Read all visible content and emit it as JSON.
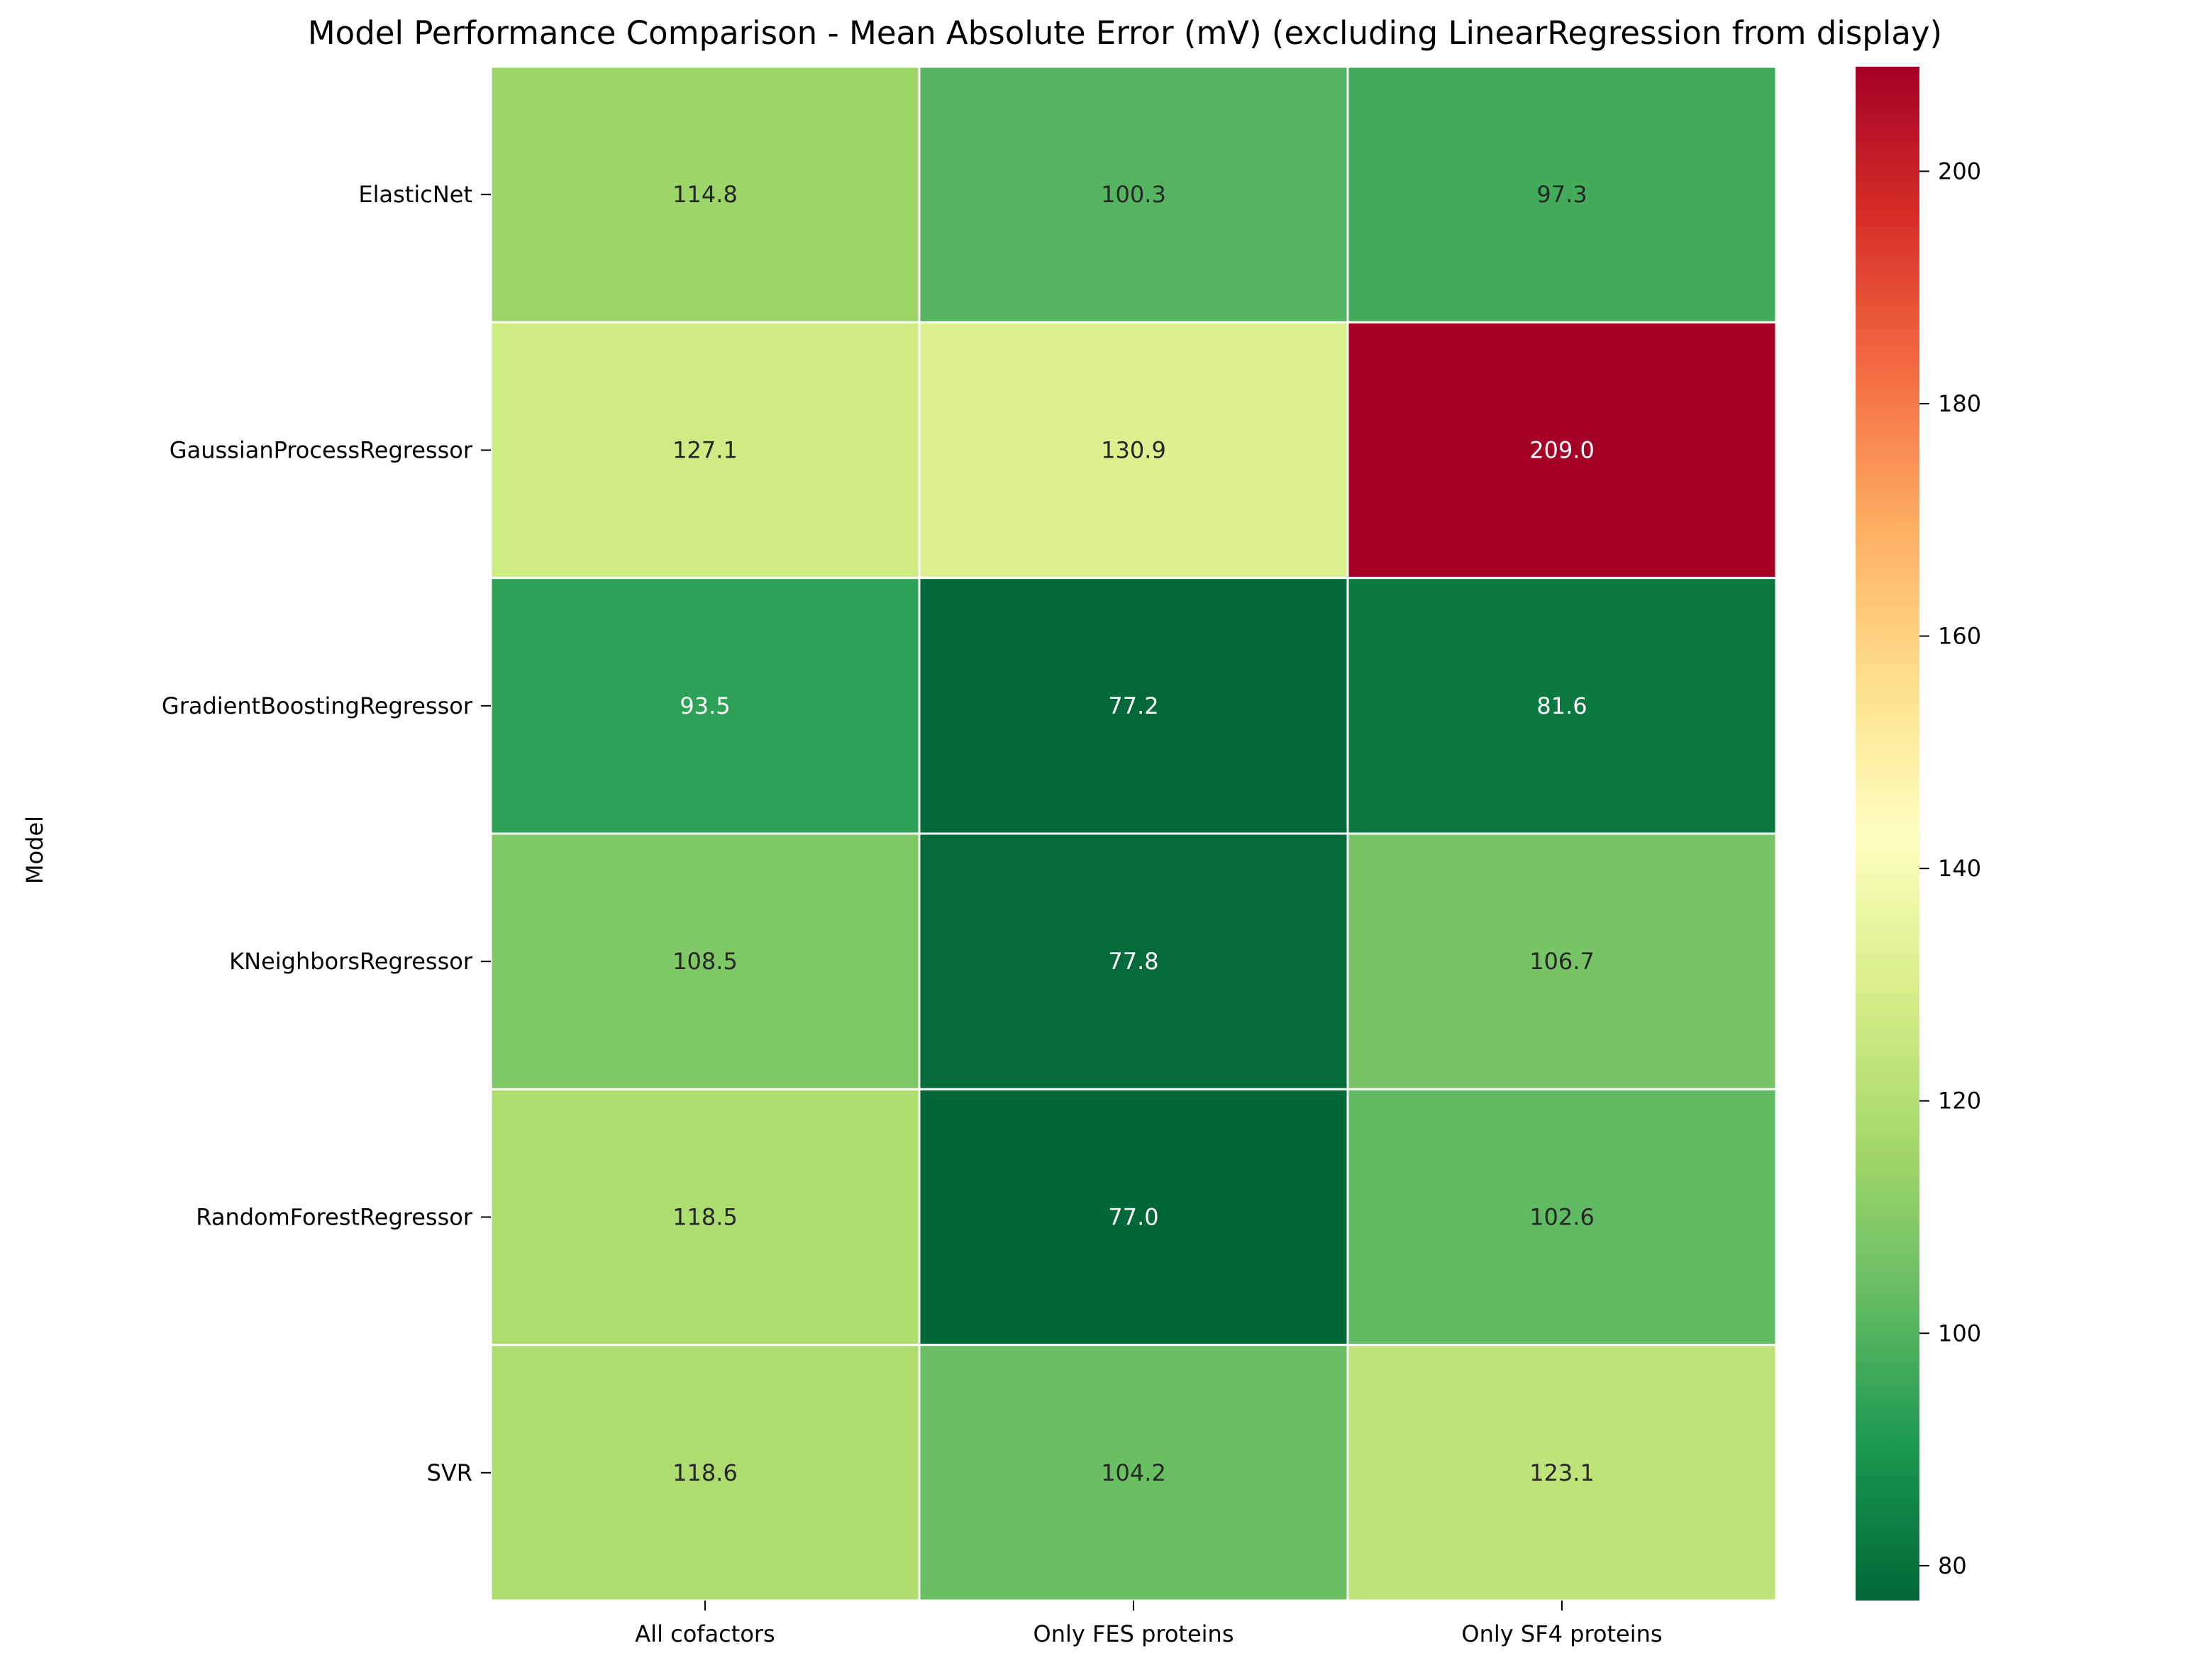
{
  "chart_data": {
    "type": "heatmap",
    "title": "Model Performance Comparison - Mean Absolute Error (mV) (excluding LinearRegression from display)",
    "ylabel": "Model",
    "xlabel": "",
    "columns": [
      "All cofactors",
      "Only FES proteins",
      "Only SF4 proteins"
    ],
    "rows": [
      "ElasticNet",
      "GaussianProcessRegressor",
      "GradientBoostingRegressor",
      "KNeighborsRegressor",
      "RandomForestRegressor",
      "SVR"
    ],
    "values": [
      [
        114.8,
        100.3,
        97.3
      ],
      [
        127.1,
        130.9,
        209.0
      ],
      [
        93.5,
        77.2,
        81.6
      ],
      [
        108.5,
        77.8,
        106.7
      ],
      [
        118.5,
        77.0,
        102.6
      ],
      [
        118.6,
        104.2,
        123.1
      ]
    ],
    "value_labels": [
      [
        "114.8",
        "100.3",
        "97.3"
      ],
      [
        "127.1",
        "130.9",
        "209.0"
      ],
      [
        "93.5",
        "77.2",
        "81.6"
      ],
      [
        "108.5",
        "77.8",
        "106.7"
      ],
      [
        "118.5",
        "77.0",
        "102.6"
      ],
      [
        "118.6",
        "104.2",
        "123.1"
      ]
    ],
    "colormap": "RdYlGn_r",
    "colorbar": {
      "min": 77.0,
      "max": 209.0,
      "ticks": [
        80,
        100,
        120,
        140,
        160,
        180,
        200
      ],
      "tick_labels": [
        "80",
        "100",
        "120",
        "140",
        "160",
        "180",
        "200"
      ]
    },
    "grid": false,
    "legend": "colorbar-right"
  }
}
